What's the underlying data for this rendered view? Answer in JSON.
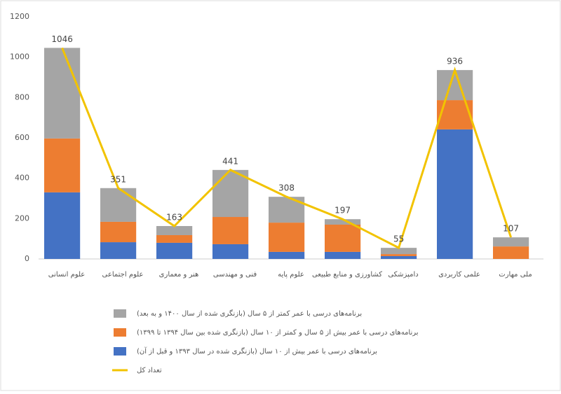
{
  "chart_data": {
    "type": "bar",
    "stacked": true,
    "categories": [
      "علوم انسانی",
      "علوم اجتماعی",
      "هنر و معماری",
      "فنی و مهندسی",
      "علوم پایه",
      "کشاورزی و منابع طبیعی",
      "دامپزشکی",
      "علمی کاربردی",
      "ملی مهارت"
    ],
    "series": [
      {
        "name": "برنامه‌های درسی با عمر بیش از ۱۰ سال (بازنگری شده در سال ۱۳۹۳ و قبل از آن)",
        "color": "#4472c4",
        "values": [
          330,
          83,
          80,
          73,
          35,
          35,
          14,
          642,
          0
        ]
      },
      {
        "name": "برنامه‌های درسی با عمر بیش از ۵ سال و کمتر از ۱۰ سال (بازنگری شده بین سال ۱۳۹۴ تا ۱۳۹۹)",
        "color": "#ed7d31",
        "values": [
          267,
          101,
          38,
          135,
          145,
          135,
          10,
          145,
          62
        ]
      },
      {
        "name": "برنامه‌های درسی با عمر کمتر از ۵ سال (بازنگری شده از سال ۱۴۰۰ و به بعد)",
        "color": "#a5a5a5",
        "values": [
          449,
          167,
          45,
          233,
          128,
          27,
          31,
          149,
          45
        ]
      },
      {
        "name": "تعداد کل",
        "type": "line",
        "color": "#f2c300",
        "values": [
          1046,
          351,
          163,
          441,
          308,
          197,
          55,
          936,
          107
        ]
      }
    ],
    "ylim": [
      0,
      1200
    ],
    "yticks": [
      0,
      200,
      400,
      600,
      800,
      1000,
      1200
    ],
    "grid": false
  }
}
